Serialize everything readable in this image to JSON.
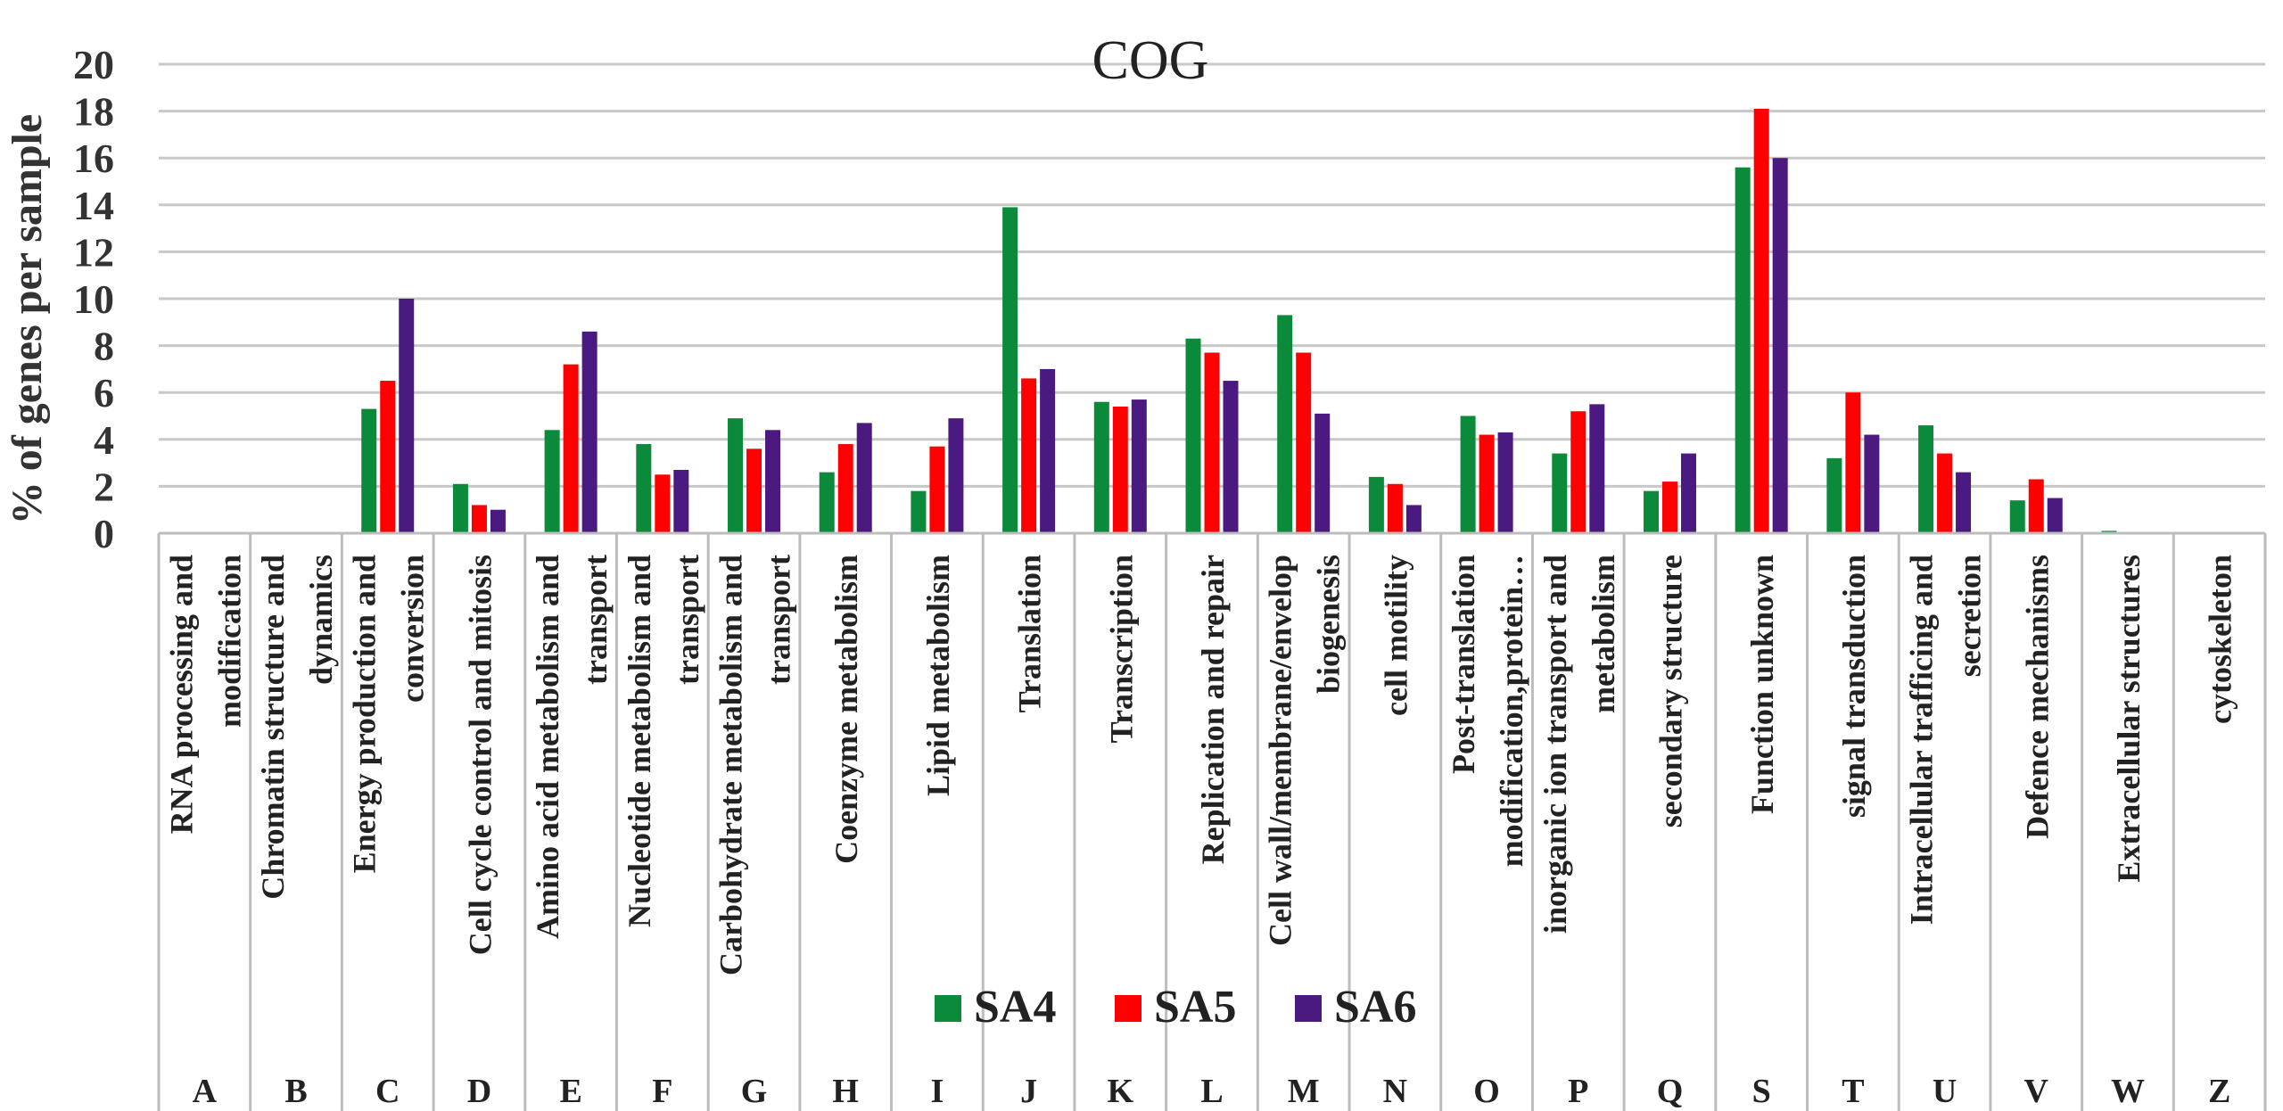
{
  "chart_data": {
    "type": "bar",
    "title": "COG",
    "ylabel": "% of genes per sample",
    "ylim": [
      0,
      20
    ],
    "yticks": [
      0,
      2,
      4,
      6,
      8,
      10,
      12,
      14,
      16,
      18,
      20
    ],
    "grid": true,
    "legend_position": "bottom-center",
    "categories": [
      "A",
      "B",
      "C",
      "D",
      "E",
      "F",
      "G",
      "H",
      "I",
      "J",
      "K",
      "L",
      "M",
      "N",
      "O",
      "P",
      "Q",
      "S",
      "T",
      "U",
      "V",
      "W",
      "Z"
    ],
    "category_descriptions": [
      [
        "RNA processing and",
        "modification"
      ],
      [
        "Chromatin structure and",
        "dynamics"
      ],
      [
        "Energy production and",
        "conversion"
      ],
      [
        "Cell cycle control and mitosis"
      ],
      [
        "Amino acid metabolism and",
        "transport"
      ],
      [
        "Nucleotide metabolism and",
        "transport"
      ],
      [
        "Carbohydrate metabolism and",
        "transport"
      ],
      [
        "Coenzyme metabolism"
      ],
      [
        "Lipid metabolism"
      ],
      [
        "Translation"
      ],
      [
        "Transcription"
      ],
      [
        "Replication and repair"
      ],
      [
        "Cell wall/membrane/envelop",
        "biogenesis"
      ],
      [
        "cell motility"
      ],
      [
        "Post-translation",
        "modification,protein…"
      ],
      [
        "inorganic ion transport and",
        "metabolism"
      ],
      [
        "secondary structure"
      ],
      [
        "Function unknown"
      ],
      [
        "signal transduction"
      ],
      [
        "Intracellular trafficing and",
        "secretion"
      ],
      [
        "Defence mechanisms"
      ],
      [
        "Extracellular structures"
      ],
      [
        "cytoskeleton"
      ]
    ],
    "series": [
      {
        "name": "SA4",
        "color": "#0a8a3a",
        "values": [
          0,
          0,
          5.3,
          2.1,
          4.4,
          3.8,
          4.9,
          2.6,
          1.8,
          13.9,
          5.6,
          8.3,
          9.3,
          2.4,
          5.0,
          3.4,
          1.8,
          15.6,
          3.2,
          4.6,
          1.4,
          0.1,
          0
        ]
      },
      {
        "name": "SA5",
        "color": "#ff0000",
        "values": [
          0,
          0,
          6.5,
          1.2,
          7.2,
          2.5,
          3.6,
          3.8,
          3.7,
          6.6,
          5.4,
          7.7,
          7.7,
          2.1,
          4.2,
          5.2,
          2.2,
          18.1,
          6.0,
          3.4,
          2.3,
          0,
          0
        ]
      },
      {
        "name": "SA6",
        "color": "#4b1a80",
        "values": [
          0,
          0,
          10.0,
          1.0,
          8.6,
          2.7,
          4.4,
          4.7,
          4.9,
          7.0,
          5.7,
          6.5,
          5.1,
          1.2,
          4.3,
          5.5,
          3.4,
          16.0,
          4.2,
          2.6,
          1.5,
          0,
          0
        ]
      }
    ]
  }
}
